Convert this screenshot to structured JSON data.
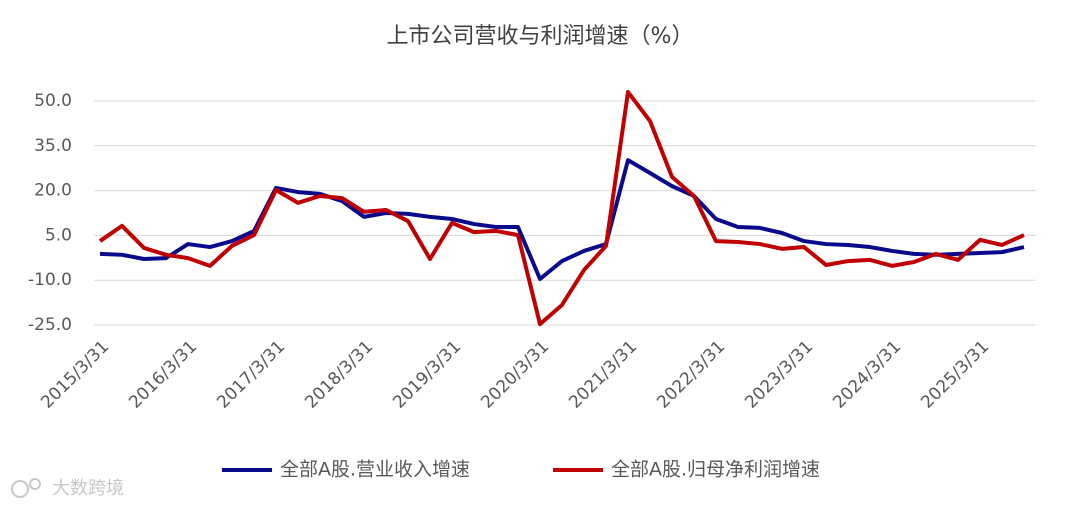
{
  "chart_data": {
    "type": "line",
    "title": "上市公司营收与利润增速（%）",
    "categories": [
      "2015/3/31",
      null,
      null,
      null,
      "2016/3/31",
      null,
      null,
      null,
      "2017/3/31",
      null,
      null,
      null,
      "2018/3/31",
      null,
      null,
      null,
      "2019/3/31",
      null,
      null,
      null,
      "2020/3/31",
      null,
      null,
      null,
      "2021/3/31",
      null,
      null,
      null,
      "2022/3/31",
      null,
      null,
      null,
      "2023/3/31",
      null,
      null,
      null,
      "2024/3/31",
      null,
      null,
      null,
      "2025/3/31",
      null,
      null
    ],
    "series": [
      {
        "name": "全部A股.营业收入增速",
        "color": "#0a0a8c",
        "values": [
          -1.2,
          -1.5,
          -2.9,
          -2.6,
          2.1,
          1.1,
          3.1,
          6.5,
          20.9,
          19.5,
          18.9,
          16.5,
          11.2,
          12.5,
          12.2,
          11.2,
          10.5,
          8.8,
          7.8,
          7.8,
          -9.6,
          -3.6,
          -0.2,
          2.1,
          30.2,
          25.9,
          21.5,
          18.2,
          10.5,
          7.8,
          7.5,
          5.8,
          3.1,
          2.1,
          1.8,
          1.1,
          -0.2,
          -1.2,
          -1.5,
          -1.2,
          -0.9,
          -0.6,
          1.1
        ]
      },
      {
        "name": "全部A股.归母净利润增速",
        "color": "#c00000",
        "values": [
          3.1,
          8.2,
          0.8,
          -1.5,
          -2.6,
          -5.2,
          1.5,
          5.1,
          20.2,
          15.9,
          18.2,
          17.5,
          12.9,
          13.5,
          9.8,
          -2.9,
          9.2,
          6.1,
          6.5,
          5.1,
          -24.7,
          -18.3,
          -6.6,
          1.5,
          53.0,
          43.3,
          24.6,
          18.2,
          3.1,
          2.8,
          2.1,
          0.5,
          1.1,
          -4.9,
          -3.6,
          -3.2,
          -5.2,
          -3.9,
          -1.2,
          -3.2,
          3.5,
          1.8,
          5.1
        ]
      }
    ],
    "ylim": [
      -25,
      50
    ],
    "yticks": [
      {
        "value": -25,
        "label": "-25.0"
      },
      {
        "value": -10,
        "label": "-10.0"
      },
      {
        "value": 5,
        "label": "5.0"
      },
      {
        "value": 20,
        "label": "20.0"
      },
      {
        "value": 35,
        "label": "35.0"
      },
      {
        "value": 50,
        "label": "50.0"
      }
    ],
    "grid": true,
    "legend": "bottom",
    "watermark": "大数跨境"
  }
}
